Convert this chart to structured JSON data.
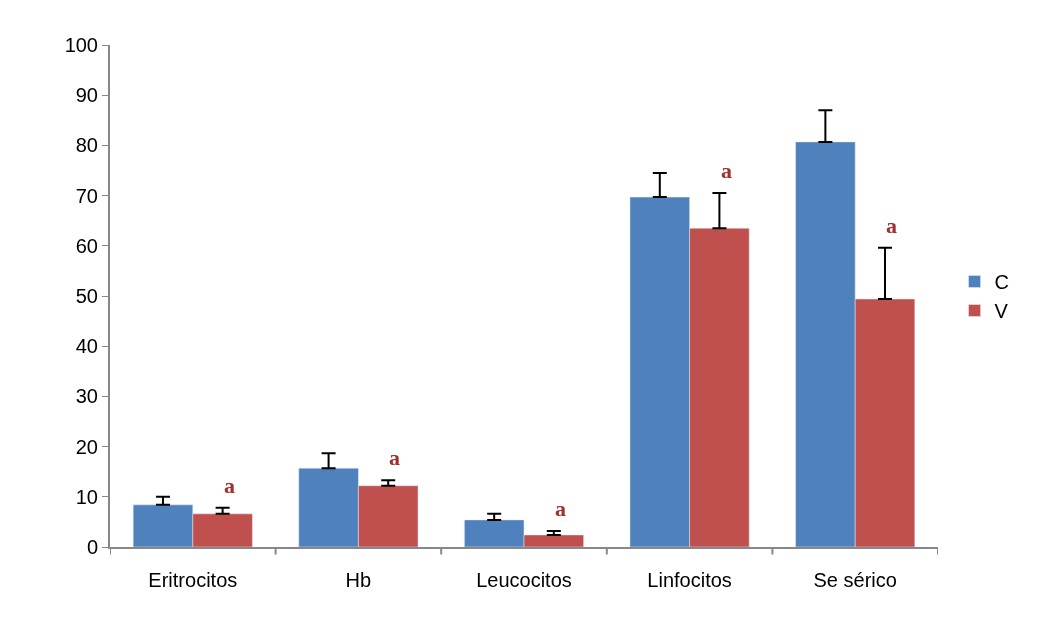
{
  "chart_data": {
    "type": "bar",
    "categories": [
      "Eritrocitos",
      "Hb",
      "Leucocitos",
      "Linfocitos",
      "Se sérico"
    ],
    "series": [
      {
        "name": "C",
        "color": "#4f81bd",
        "values": [
          8.4,
          15.7,
          5.4,
          69.7,
          80.7
        ],
        "errors": [
          [
            8.4,
            10
          ],
          [
            15.7,
            18.7
          ],
          [
            5.4,
            6.6
          ],
          [
            69.7,
            74.5
          ],
          [
            80.7,
            87
          ]
        ]
      },
      {
        "name": "V",
        "color": "#c0504d",
        "values": [
          6.6,
          12.2,
          2.4,
          63.5,
          49.4
        ],
        "errors": [
          [
            6.6,
            7.8
          ],
          [
            12.2,
            13.3
          ],
          [
            2.4,
            3.2
          ],
          [
            63.5,
            70.5
          ],
          [
            49.4,
            59.6
          ]
        ]
      }
    ],
    "ylim": [
      0,
      100
    ],
    "yticks": [
      0,
      10,
      20,
      30,
      40,
      50,
      60,
      70,
      80,
      90,
      100
    ],
    "legend": "right",
    "annotations": [
      "a",
      "a",
      "a",
      "a",
      "a"
    ]
  }
}
